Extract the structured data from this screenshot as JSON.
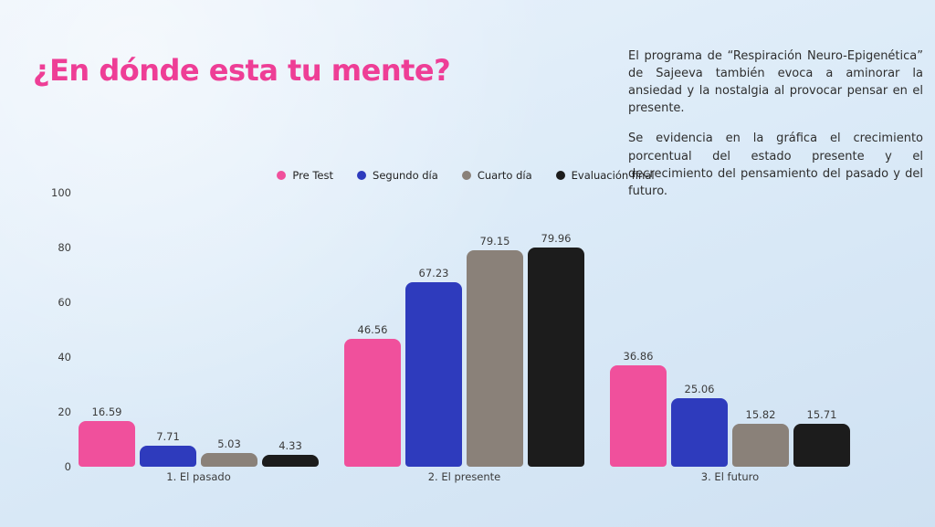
{
  "title": {
    "text": "¿En dónde esta tu mente?",
    "color": "#ee3e96"
  },
  "side_text": {
    "paragraph1": "El programa de “Respiración Neuro-Epigenética” de Sajeeva también evoca a aminorar la ansiedad y la nostalgia al provocar pensar en el presente.",
    "paragraph2": "Se evidencia en la gráfica el crecimiento porcentual del estado presente y el decrecimiento del pensamiento del pasado y del futuro."
  },
  "chart_data": {
    "type": "bar",
    "title": "",
    "xlabel": "",
    "ylabel": "",
    "categories": [
      "1. El pasado",
      "2. El presente",
      "3. El futuro"
    ],
    "series": [
      {
        "name": "Pre Test",
        "color": "#f0509c",
        "values": [
          16.59,
          46.56,
          36.86
        ]
      },
      {
        "name": "Segundo día",
        "color": "#2e3bbd",
        "values": [
          7.71,
          67.23,
          25.06
        ]
      },
      {
        "name": "Cuarto día",
        "color": "#8a8179",
        "values": [
          5.03,
          79.15,
          15.82
        ]
      },
      {
        "name": "Evaluación final",
        "color": "#1c1c1c",
        "values": [
          4.33,
          79.96,
          15.71
        ]
      }
    ],
    "ylim": [
      0,
      100
    ],
    "yticks": [
      0,
      20,
      40,
      60,
      80,
      100
    ],
    "grid": false,
    "legend_position": "top",
    "value_labels": true
  },
  "colors": {
    "background_top": "#eaf2fb",
    "background_bottom": "#cfe1f2",
    "axis_text": "#3b3b3b",
    "body_text": "#2e2e2e"
  }
}
